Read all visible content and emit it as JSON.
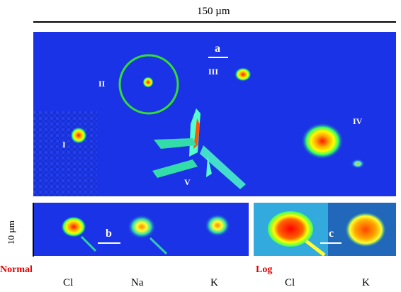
{
  "scale_top": "150 µm",
  "scale_side": "10 µm",
  "panel_a": {
    "label": "a",
    "regions": [
      "I",
      "II",
      "III",
      "IV",
      "V"
    ]
  },
  "panel_b": {
    "label": "b"
  },
  "panel_c": {
    "label": "c"
  },
  "modes": {
    "normal": "Normal",
    "log": "Log"
  },
  "elements": [
    "Cl",
    "Na",
    "K",
    "Cl",
    "K"
  ],
  "colors": {
    "bg_blue": "#1a33e6",
    "mode_red": "#e10000",
    "circle_green": "#33dd33"
  }
}
